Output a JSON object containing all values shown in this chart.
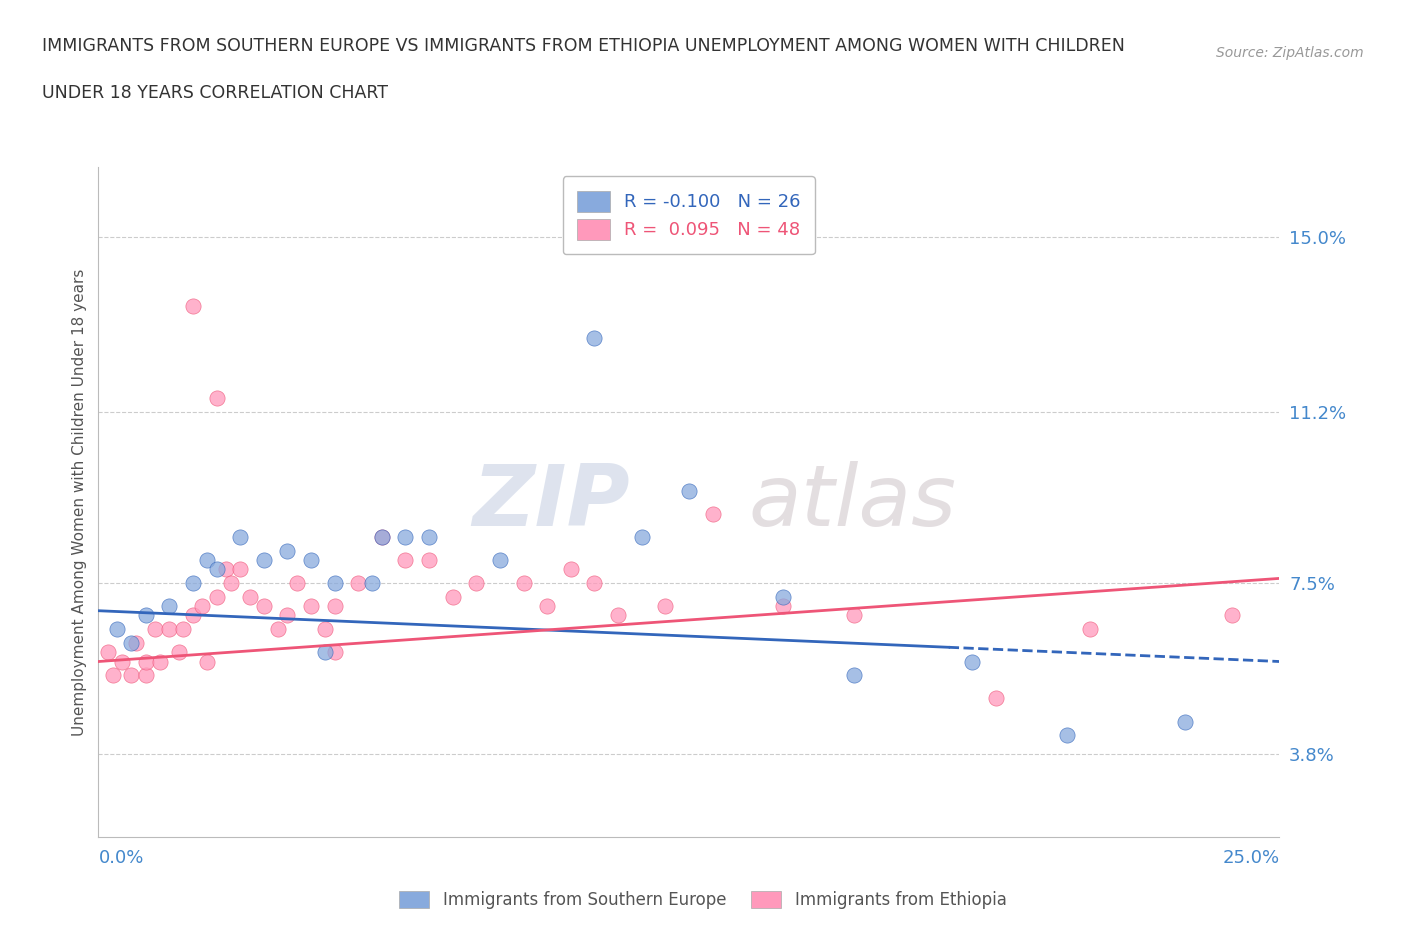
{
  "title_line1": "IMMIGRANTS FROM SOUTHERN EUROPE VS IMMIGRANTS FROM ETHIOPIA UNEMPLOYMENT AMONG WOMEN WITH CHILDREN",
  "title_line2": "UNDER 18 YEARS CORRELATION CHART",
  "source_text": "Source: ZipAtlas.com",
  "ylabel": "Unemployment Among Women with Children Under 18 years",
  "y_tick_values": [
    3.8,
    7.5,
    11.2,
    15.0
  ],
  "xlim": [
    0.0,
    25.0
  ],
  "ylim": [
    2.0,
    16.5
  ],
  "color_blue": "#88AADD",
  "color_pink": "#FF99BB",
  "color_blue_line": "#3366BB",
  "color_pink_line": "#EE5577",
  "blue_trend_y": [
    6.9,
    5.8
  ],
  "pink_trend_y": [
    5.8,
    7.6
  ],
  "blue_x": [
    0.4,
    0.7,
    1.0,
    1.5,
    2.0,
    2.3,
    2.5,
    3.0,
    3.5,
    4.0,
    4.5,
    5.0,
    6.5,
    7.0,
    8.5,
    10.5,
    11.5,
    12.5,
    14.5,
    16.0,
    18.5,
    20.5,
    23.0,
    4.8,
    5.8,
    6.0
  ],
  "blue_y": [
    6.5,
    6.2,
    6.8,
    7.0,
    7.5,
    8.0,
    7.8,
    8.5,
    8.0,
    8.2,
    8.0,
    7.5,
    8.5,
    8.5,
    8.0,
    12.8,
    8.5,
    9.5,
    7.2,
    5.5,
    5.8,
    4.2,
    4.5,
    6.0,
    7.5,
    8.5
  ],
  "pink_x": [
    0.2,
    0.3,
    0.5,
    0.7,
    0.8,
    1.0,
    1.0,
    1.2,
    1.3,
    1.5,
    1.7,
    1.8,
    2.0,
    2.2,
    2.3,
    2.5,
    2.7,
    2.8,
    3.0,
    3.2,
    3.5,
    3.8,
    4.0,
    4.2,
    4.5,
    4.8,
    5.0,
    5.0,
    5.5,
    6.0,
    6.5,
    7.0,
    7.5,
    8.0,
    9.0,
    9.5,
    10.0,
    10.5,
    11.0,
    12.0,
    13.0,
    14.5,
    16.0,
    19.0,
    21.0,
    24.0,
    2.0,
    2.5
  ],
  "pink_y": [
    6.0,
    5.5,
    5.8,
    5.5,
    6.2,
    5.5,
    5.8,
    6.5,
    5.8,
    6.5,
    6.0,
    6.5,
    6.8,
    7.0,
    5.8,
    7.2,
    7.8,
    7.5,
    7.8,
    7.2,
    7.0,
    6.5,
    6.8,
    7.5,
    7.0,
    6.5,
    6.0,
    7.0,
    7.5,
    8.5,
    8.0,
    8.0,
    7.2,
    7.5,
    7.5,
    7.0,
    7.8,
    7.5,
    6.8,
    7.0,
    9.0,
    7.0,
    6.8,
    5.0,
    6.5,
    6.8,
    13.5,
    11.5
  ],
  "watermark_zip": "ZIP",
  "watermark_atlas": "atlas",
  "bg_color": "#FFFFFF",
  "grid_color": "#CCCCCC",
  "title_color": "#333333",
  "tick_label_color": "#4488CC",
  "ylabel_color": "#555555"
}
